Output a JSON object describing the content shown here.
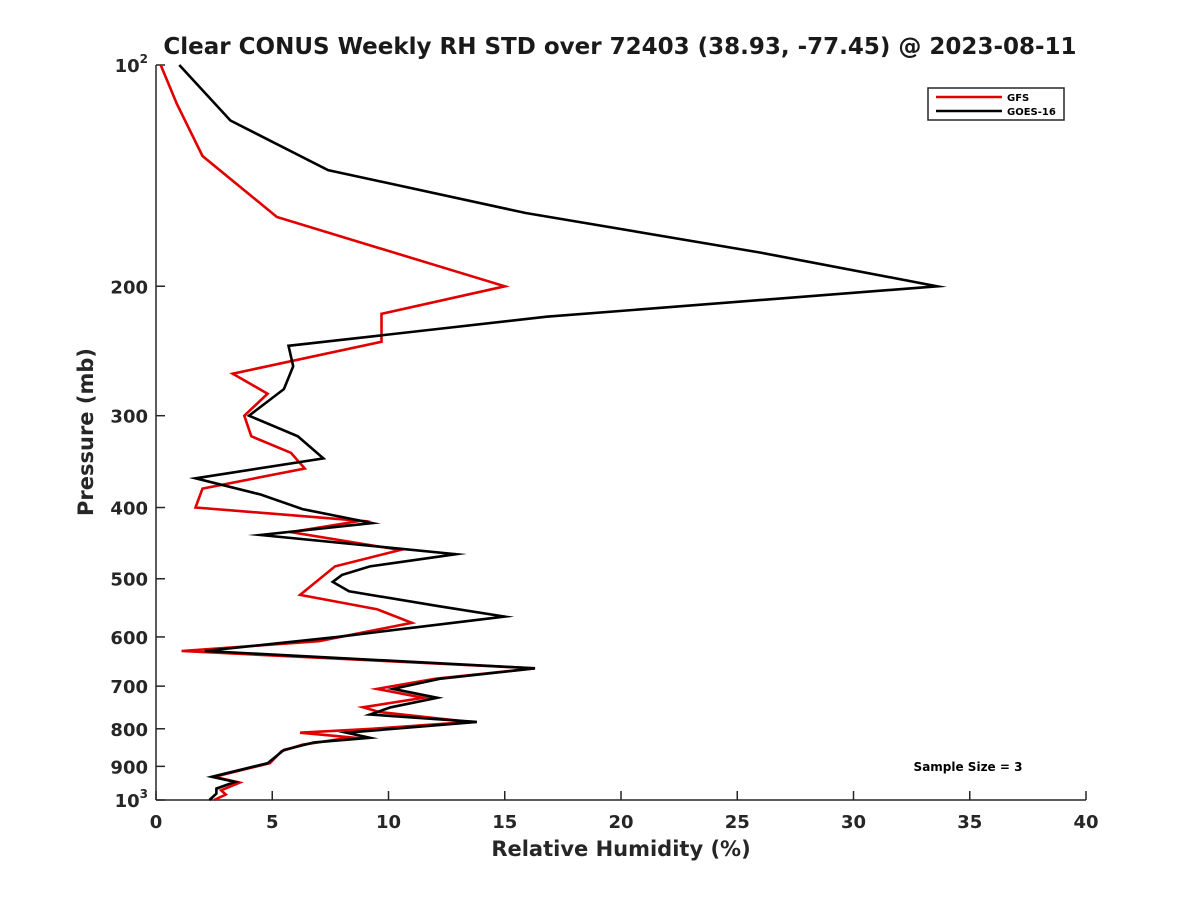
{
  "chart_data": {
    "type": "line",
    "title": "Clear CONUS Weekly RH STD over 72403 (38.93, -77.45) @ 2023-08-11",
    "xlabel": "Relative Humidity (%)",
    "ylabel": "Pressure (mb)",
    "xlim": [
      0,
      40
    ],
    "ylim": [
      100,
      1000
    ],
    "y_scale": "log",
    "y_reversed": true,
    "grid": false,
    "legend_position": "top-right",
    "x_ticks": [
      0,
      5,
      10,
      15,
      20,
      25,
      30,
      35,
      40
    ],
    "x_tick_labels": [
      "0",
      "5",
      "10",
      "15",
      "20",
      "25",
      "30",
      "35",
      "40"
    ],
    "y_ticks": [
      {
        "value": 100,
        "base": "10",
        "exp": "2",
        "label": ""
      },
      {
        "value": 200,
        "base": "",
        "exp": "",
        "label": "200"
      },
      {
        "value": 300,
        "base": "",
        "exp": "",
        "label": "300"
      },
      {
        "value": 400,
        "base": "",
        "exp": "",
        "label": "400"
      },
      {
        "value": 500,
        "base": "",
        "exp": "",
        "label": "500"
      },
      {
        "value": 600,
        "base": "",
        "exp": "",
        "label": "600"
      },
      {
        "value": 700,
        "base": "",
        "exp": "",
        "label": "700"
      },
      {
        "value": 800,
        "base": "",
        "exp": "",
        "label": "800"
      },
      {
        "value": 900,
        "base": "",
        "exp": "",
        "label": "900"
      },
      {
        "value": 1000,
        "base": "10",
        "exp": "3",
        "label": ""
      }
    ],
    "annotation": "Sample Size = 3",
    "series": [
      {
        "name": "GFS",
        "color": "#e00000",
        "points": [
          [
            0.2,
            100
          ],
          [
            0.9,
            113
          ],
          [
            2.0,
            133
          ],
          [
            5.2,
            161
          ],
          [
            15.0,
            200
          ],
          [
            9.7,
            218
          ],
          [
            9.7,
            238
          ],
          [
            3.3,
            263
          ],
          [
            4.8,
            280
          ],
          [
            3.8,
            300
          ],
          [
            4.1,
            320
          ],
          [
            5.8,
            337
          ],
          [
            6.4,
            354
          ],
          [
            2.0,
            377
          ],
          [
            1.7,
            400
          ],
          [
            8.8,
            417
          ],
          [
            5.8,
            432
          ],
          [
            10.5,
            457
          ],
          [
            7.7,
            481
          ],
          [
            6.2,
            526
          ],
          [
            9.5,
            550
          ],
          [
            11.0,
            574
          ],
          [
            7.0,
            608
          ],
          [
            1.1,
            627
          ],
          [
            16.3,
            662
          ],
          [
            12.0,
            684
          ],
          [
            9.5,
            706
          ],
          [
            11.5,
            726
          ],
          [
            8.9,
            748
          ],
          [
            9.6,
            759
          ],
          [
            13.5,
            783
          ],
          [
            9.3,
            800
          ],
          [
            6.2,
            810
          ],
          [
            8.4,
            822
          ],
          [
            6.3,
            841
          ],
          [
            5.4,
            858
          ],
          [
            4.9,
            891
          ],
          [
            2.5,
            930
          ],
          [
            3.6,
            947
          ],
          [
            2.8,
            970
          ],
          [
            3.0,
            983
          ],
          [
            2.5,
            1000
          ]
        ]
      },
      {
        "name": "GOES-16",
        "color": "#000000",
        "points": [
          [
            1.0,
            100
          ],
          [
            3.2,
            119
          ],
          [
            7.4,
            139
          ],
          [
            15.9,
            159
          ],
          [
            26.0,
            180
          ],
          [
            33.6,
            200
          ],
          [
            16.8,
            220
          ],
          [
            5.7,
            241
          ],
          [
            5.9,
            257
          ],
          [
            5.5,
            276
          ],
          [
            4.0,
            300
          ],
          [
            6.1,
            320
          ],
          [
            7.2,
            343
          ],
          [
            1.7,
            365
          ],
          [
            4.5,
            384
          ],
          [
            6.3,
            402
          ],
          [
            9.3,
            420
          ],
          [
            4.5,
            436
          ],
          [
            12.9,
            463
          ],
          [
            9.2,
            481
          ],
          [
            8.0,
            494
          ],
          [
            7.6,
            505
          ],
          [
            8.3,
            520
          ],
          [
            12.2,
            545
          ],
          [
            15.0,
            563
          ],
          [
            7.8,
            600
          ],
          [
            2.1,
            627
          ],
          [
            16.3,
            662
          ],
          [
            12.2,
            684
          ],
          [
            10.2,
            706
          ],
          [
            12.1,
            726
          ],
          [
            10.1,
            748
          ],
          [
            9.2,
            765
          ],
          [
            13.8,
            783
          ],
          [
            8.2,
            810
          ],
          [
            9.2,
            823
          ],
          [
            6.8,
            835
          ],
          [
            5.5,
            855
          ],
          [
            4.8,
            891
          ],
          [
            2.4,
            930
          ],
          [
            3.4,
            945
          ],
          [
            2.6,
            965
          ],
          [
            2.6,
            980
          ],
          [
            2.3,
            1000
          ]
        ]
      }
    ]
  }
}
